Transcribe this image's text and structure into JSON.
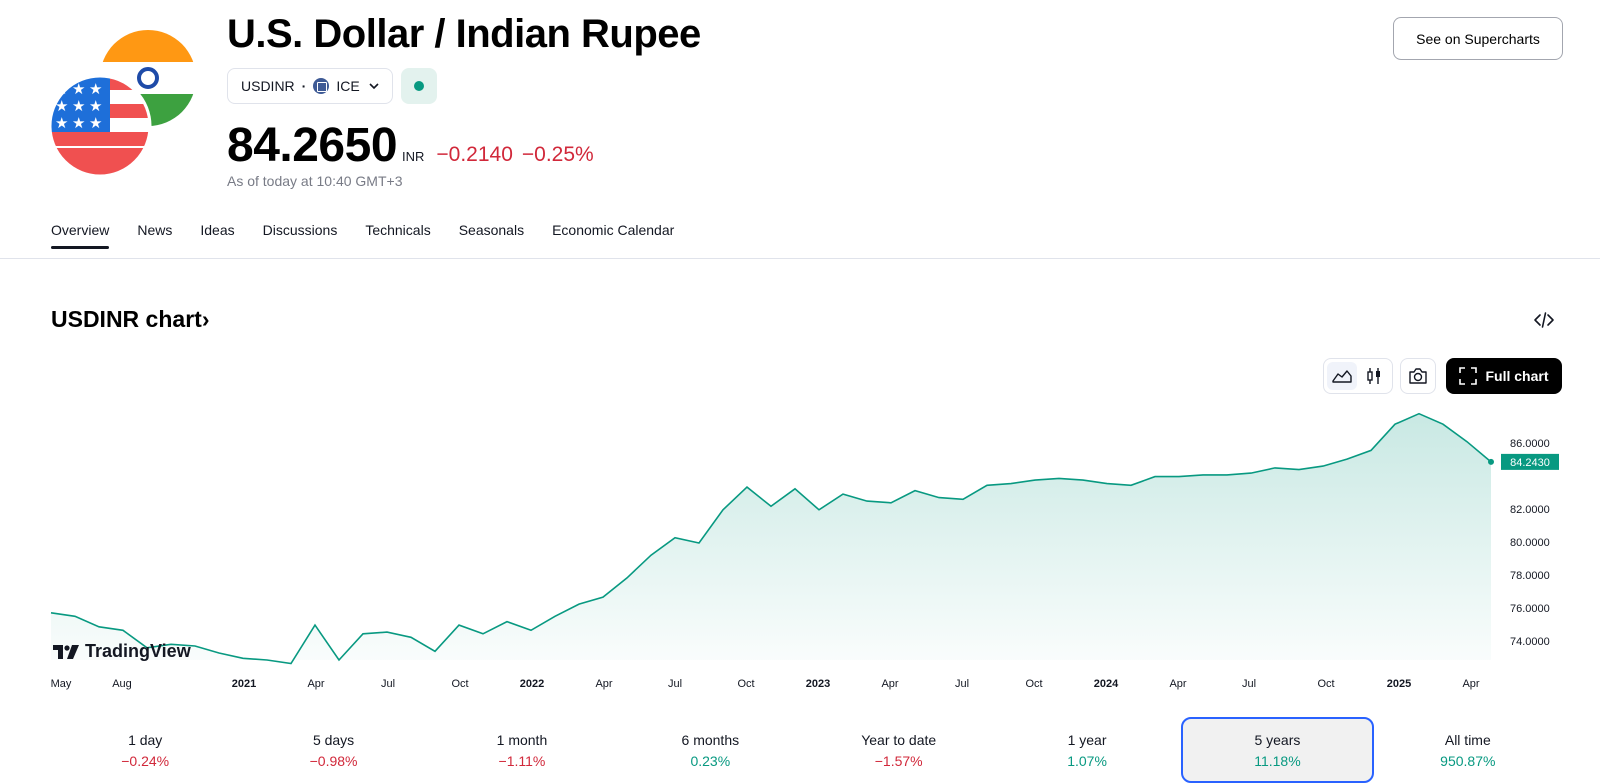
{
  "header": {
    "title": "U.S. Dollar / Indian Rupee",
    "symbol": "USDINR",
    "separator": "·",
    "exchange": "ICE",
    "price": "84.2650",
    "currency": "INR",
    "change": "−0.2140",
    "change_percent": "−0.25%",
    "as_of": "As of today at 10:40 GMT+3",
    "supercharts_label": "See on Supercharts"
  },
  "nav": {
    "tabs": [
      {
        "label": "Overview",
        "active": true
      },
      {
        "label": "News"
      },
      {
        "label": "Ideas"
      },
      {
        "label": "Discussions"
      },
      {
        "label": "Technicals"
      },
      {
        "label": "Seasonals"
      },
      {
        "label": "Economic Calendar"
      }
    ]
  },
  "chart_section": {
    "title": "USDINR chart",
    "title_chevron": "›",
    "full_chart_label": "Full chart",
    "brand": "TradingView"
  },
  "chart_data": {
    "type": "area",
    "x_ticks": [
      {
        "label": "May",
        "bold": false
      },
      {
        "label": "Aug",
        "bold": false
      },
      {
        "label": "2021",
        "bold": true
      },
      {
        "label": "Apr",
        "bold": false
      },
      {
        "label": "Jul",
        "bold": false
      },
      {
        "label": "Oct",
        "bold": false
      },
      {
        "label": "2022",
        "bold": true
      },
      {
        "label": "Apr",
        "bold": false
      },
      {
        "label": "Jul",
        "bold": false
      },
      {
        "label": "Oct",
        "bold": false
      },
      {
        "label": "2023",
        "bold": true
      },
      {
        "label": "Apr",
        "bold": false
      },
      {
        "label": "Jul",
        "bold": false
      },
      {
        "label": "Oct",
        "bold": false
      },
      {
        "label": "2024",
        "bold": true
      },
      {
        "label": "Apr",
        "bold": false
      },
      {
        "label": "Jul",
        "bold": false
      },
      {
        "label": "Oct",
        "bold": false
      },
      {
        "label": "2025",
        "bold": true
      },
      {
        "label": "Apr",
        "bold": false
      }
    ],
    "y_ticks": [
      "86.0000",
      "82.0000",
      "80.0000",
      "78.0000",
      "76.0000",
      "74.0000"
    ],
    "ylim": [
      72.9,
      87.5
    ],
    "last_value_label": "84.2430",
    "last_value": 84.243,
    "series": [
      {
        "x": [
          "2020-05",
          "2020-06",
          "2020-07",
          "2020-08",
          "2020-09",
          "2020-10",
          "2020-11",
          "2020-12",
          "2021-01",
          "2021-02",
          "2021-03",
          "2021-04",
          "2021-05",
          "2021-06",
          "2021-07",
          "2021-08",
          "2021-09",
          "2021-10",
          "2021-11",
          "2021-12",
          "2022-01",
          "2022-02",
          "2022-03",
          "2022-04",
          "2022-05",
          "2022-06",
          "2022-07",
          "2022-08",
          "2022-09",
          "2022-10",
          "2022-11",
          "2022-12",
          "2023-01",
          "2023-02",
          "2023-03",
          "2023-04",
          "2023-05",
          "2023-06",
          "2023-07",
          "2023-08",
          "2023-09",
          "2023-10",
          "2023-11",
          "2023-12",
          "2024-01",
          "2024-02",
          "2024-03",
          "2024-04",
          "2024-05",
          "2024-06",
          "2024-07",
          "2024-08",
          "2024-09",
          "2024-10",
          "2024-11",
          "2024-12",
          "2025-01",
          "2025-02",
          "2025-03",
          "2025-04",
          "2025-05"
        ],
        "values": [
          75.6,
          75.4,
          74.8,
          74.6,
          73.6,
          73.8,
          73.7,
          73.3,
          73.0,
          72.9,
          72.7,
          74.9,
          72.9,
          74.4,
          74.5,
          74.2,
          73.4,
          74.9,
          74.4,
          75.1,
          74.6,
          75.4,
          76.1,
          76.5,
          77.6,
          78.9,
          79.9,
          79.6,
          81.5,
          82.8,
          81.7,
          82.7,
          81.5,
          82.4,
          82.0,
          81.9,
          82.6,
          82.2,
          82.1,
          82.9,
          83.0,
          83.2,
          83.3,
          83.2,
          83.0,
          82.9,
          83.4,
          83.4,
          83.5,
          83.5,
          83.6,
          83.9,
          83.8,
          84.0,
          84.4,
          84.9,
          86.4,
          87.0,
          86.4,
          85.4,
          84.243
        ]
      }
    ],
    "line_color": "#089981"
  },
  "periods": [
    {
      "label": "1 day",
      "value": "−0.24%",
      "dir": "neg"
    },
    {
      "label": "5 days",
      "value": "−0.98%",
      "dir": "neg"
    },
    {
      "label": "1 month",
      "value": "−1.11%",
      "dir": "neg"
    },
    {
      "label": "6 months",
      "value": "0.23%",
      "dir": "pos"
    },
    {
      "label": "Year to date",
      "value": "−1.57%",
      "dir": "neg"
    },
    {
      "label": "1 year",
      "value": "1.07%",
      "dir": "pos"
    },
    {
      "label": "5 years",
      "value": "11.18%",
      "dir": "pos",
      "active": true
    },
    {
      "label": "All time",
      "value": "950.87%",
      "dir": "pos"
    }
  ]
}
